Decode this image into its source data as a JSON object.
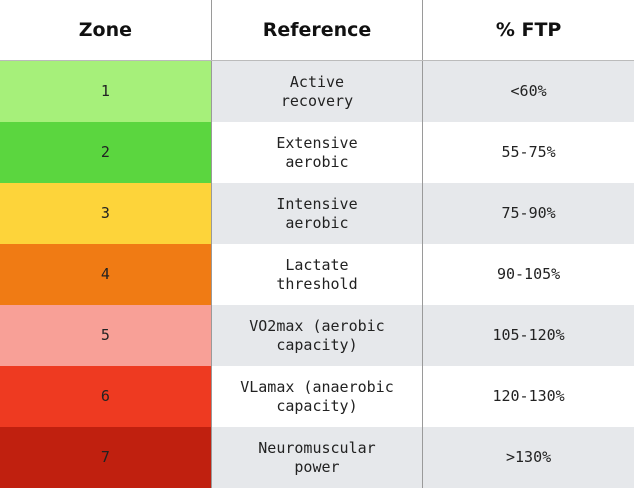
{
  "table": {
    "headers": [
      "Zone",
      "Reference",
      "% FTP"
    ],
    "rows": [
      [
        "1",
        "Active\nrecovery",
        "<60%"
      ],
      [
        "2",
        "Extensive\naerobic",
        "55-75%"
      ],
      [
        "3",
        "Intensive\naerobic",
        "75-90%"
      ],
      [
        "4",
        "Lactate\nthreshold",
        "90-105%"
      ],
      [
        "5",
        "VO2max (aerobic\ncapacity)",
        "105-120%"
      ],
      [
        "6",
        "VLamax (anaerobic\ncapacity)",
        "120-130%"
      ],
      [
        "7",
        "Neuromuscular\npower",
        ">130%"
      ]
    ]
  }
}
